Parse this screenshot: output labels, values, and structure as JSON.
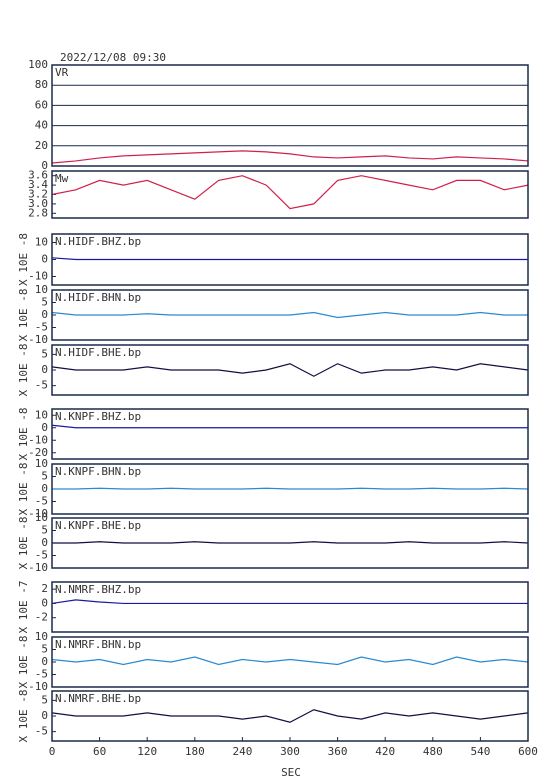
{
  "chart_data": [
    {
      "type": "line",
      "title": "2022/12/08 09:30",
      "name": "VR",
      "x": [
        0,
        30,
        60,
        90,
        120,
        150,
        180,
        210,
        240,
        270,
        300,
        330,
        360,
        390,
        420,
        450,
        480,
        510,
        540,
        570,
        600
      ],
      "values": [
        3,
        5,
        8,
        10,
        11,
        12,
        13,
        14,
        15,
        14,
        12,
        9,
        8,
        9,
        10,
        8,
        7,
        9,
        8,
        7,
        5
      ],
      "color": "#d0204a",
      "xlim": [
        0,
        600
      ],
      "ylim": [
        0,
        100
      ],
      "yticks": [
        0,
        20,
        40,
        60,
        80,
        100
      ],
      "grid": true
    },
    {
      "type": "line",
      "name": "Mw",
      "x": [
        0,
        30,
        60,
        90,
        120,
        150,
        180,
        210,
        240,
        270,
        300,
        330,
        360,
        390,
        420,
        450,
        480,
        510,
        540,
        570,
        600
      ],
      "values": [
        3.2,
        3.3,
        3.5,
        3.4,
        3.5,
        3.3,
        3.1,
        3.5,
        3.6,
        3.4,
        2.9,
        3.0,
        3.5,
        3.6,
        3.5,
        3.4,
        3.3,
        3.5,
        3.5,
        3.3,
        3.4
      ],
      "color": "#d0204a",
      "xlim": [
        0,
        600
      ],
      "ylim": [
        2.7,
        3.7
      ],
      "yticks": [
        2.8,
        {
          "value": 3,
          "label": "3.0"
        },
        3.2,
        3.4,
        3.6
      ]
    },
    {
      "type": "line",
      "name": "N.HIDF.BHZ.bp",
      "ylabel": "X 10E -8",
      "x": [
        0,
        30,
        60,
        90,
        120,
        150,
        180,
        210,
        240,
        270,
        300,
        330,
        360,
        390,
        420,
        450,
        480,
        510,
        540,
        570,
        600
      ],
      "values": [
        1,
        0,
        0,
        0,
        0,
        0,
        0,
        0,
        0,
        0,
        0,
        0,
        0,
        0,
        0,
        0,
        0,
        0,
        0,
        0,
        0
      ],
      "color": "#1a1aa0",
      "xlim": [
        0,
        600
      ],
      "ylim": [
        -15,
        15
      ],
      "yticks": [
        -10,
        0,
        10
      ]
    },
    {
      "type": "line",
      "name": "N.HIDF.BHN.bp",
      "ylabel": "X 10E -8",
      "x": [
        0,
        30,
        60,
        90,
        120,
        150,
        180,
        210,
        240,
        270,
        300,
        330,
        360,
        390,
        420,
        450,
        480,
        510,
        540,
        570,
        600
      ],
      "values": [
        1,
        0,
        0,
        0,
        0.5,
        0,
        0,
        0,
        0,
        0,
        0,
        1,
        -1,
        0,
        1,
        0,
        0,
        0,
        1,
        0,
        0
      ],
      "color": "#2a8ad0",
      "xlim": [
        0,
        600
      ],
      "ylim": [
        -10,
        10
      ],
      "yticks": [
        -10,
        -5,
        0,
        5,
        10
      ]
    },
    {
      "type": "line",
      "name": "N.HIDF.BHE.bp",
      "ylabel": "X 10E -8",
      "x": [
        0,
        30,
        60,
        90,
        120,
        150,
        180,
        210,
        240,
        270,
        300,
        330,
        360,
        390,
        420,
        450,
        480,
        510,
        540,
        570,
        600
      ],
      "values": [
        1,
        0,
        0,
        0,
        1,
        0,
        0,
        0,
        -1,
        0,
        2,
        -2,
        2,
        -1,
        0,
        0,
        1,
        0,
        2,
        1,
        0
      ],
      "color": "#101040",
      "xlim": [
        0,
        600
      ],
      "ylim": [
        -8,
        8
      ],
      "yticks": [
        -5,
        0,
        5
      ]
    },
    {
      "type": "line",
      "name": "N.KNPF.BHZ.bp",
      "ylabel": "X 10E -8",
      "x": [
        0,
        30,
        60,
        90,
        120,
        150,
        180,
        210,
        240,
        270,
        300,
        330,
        360,
        390,
        420,
        450,
        480,
        510,
        540,
        570,
        600
      ],
      "values": [
        2,
        0,
        0,
        0,
        0,
        0,
        0,
        0,
        0,
        0,
        0,
        0,
        0,
        0,
        0,
        0,
        0,
        0,
        0,
        0,
        0
      ],
      "color": "#1a1aa0",
      "xlim": [
        0,
        600
      ],
      "ylim": [
        -25,
        15
      ],
      "yticks": [
        -20,
        -10,
        0,
        10
      ]
    },
    {
      "type": "line",
      "name": "N.KNPF.BHN.bp",
      "ylabel": "X 10E -8",
      "x": [
        0,
        30,
        60,
        90,
        120,
        150,
        180,
        210,
        240,
        270,
        300,
        330,
        360,
        390,
        420,
        450,
        480,
        510,
        540,
        570,
        600
      ],
      "values": [
        0,
        0,
        0.3,
        0,
        0,
        0.3,
        0,
        0,
        0,
        0.3,
        0,
        0,
        0,
        0.3,
        0,
        0,
        0.3,
        0,
        0,
        0.3,
        0
      ],
      "color": "#2a8ad0",
      "xlim": [
        0,
        600
      ],
      "ylim": [
        -10,
        10
      ],
      "yticks": [
        -10,
        -5,
        0,
        5,
        10
      ]
    },
    {
      "type": "line",
      "name": "N.KNPF.BHE.bp",
      "ylabel": "X 10E -8",
      "x": [
        0,
        30,
        60,
        90,
        120,
        150,
        180,
        210,
        240,
        270,
        300,
        330,
        360,
        390,
        420,
        450,
        480,
        510,
        540,
        570,
        600
      ],
      "values": [
        0,
        0,
        0.5,
        0,
        0,
        0,
        0.5,
        0,
        0,
        0,
        0,
        0.5,
        0,
        0,
        0,
        0.5,
        0,
        0,
        0,
        0.5,
        0
      ],
      "color": "#101040",
      "xlim": [
        0,
        600
      ],
      "ylim": [
        -10,
        10
      ],
      "yticks": [
        -10,
        -5,
        0,
        5,
        10
      ]
    },
    {
      "type": "line",
      "name": "N.NMRF.BHZ.bp",
      "ylabel": "X 10E -7",
      "x": [
        0,
        30,
        60,
        90,
        120,
        150,
        180,
        210,
        240,
        270,
        300,
        330,
        360,
        390,
        420,
        450,
        480,
        510,
        540,
        570,
        600
      ],
      "values": [
        0,
        0.5,
        0.2,
        0,
        0,
        0,
        0,
        0,
        0,
        0,
        0,
        0,
        0,
        0,
        0,
        0,
        0,
        0,
        0,
        0,
        0
      ],
      "color": "#1a1aa0",
      "xlim": [
        0,
        600
      ],
      "ylim": [
        -4,
        3
      ],
      "yticks": [
        -2,
        0,
        2
      ]
    },
    {
      "type": "line",
      "name": "N.NMRF.BHN.bp",
      "ylabel": "X 10E -8",
      "x": [
        0,
        30,
        60,
        90,
        120,
        150,
        180,
        210,
        240,
        270,
        300,
        330,
        360,
        390,
        420,
        450,
        480,
        510,
        540,
        570,
        600
      ],
      "values": [
        1,
        0,
        1,
        -1,
        1,
        0,
        2,
        -1,
        1,
        0,
        1,
        0,
        -1,
        2,
        0,
        1,
        -1,
        2,
        0,
        1,
        0
      ],
      "color": "#2a8ad0",
      "xlim": [
        0,
        600
      ],
      "ylim": [
        -10,
        10
      ],
      "yticks": [
        -10,
        -5,
        0,
        5,
        10
      ]
    },
    {
      "type": "line",
      "name": "N.NMRF.BHE.bp",
      "ylabel": "X 10E -8",
      "xlabel": "SEC",
      "x": [
        0,
        30,
        60,
        90,
        120,
        150,
        180,
        210,
        240,
        270,
        300,
        330,
        360,
        390,
        420,
        450,
        480,
        510,
        540,
        570,
        600
      ],
      "values": [
        1,
        0,
        0,
        0,
        1,
        0,
        0,
        0,
        -1,
        0,
        -2,
        2,
        0,
        -1,
        1,
        0,
        1,
        0,
        -1,
        0,
        1
      ],
      "color": "#101040",
      "xlim": [
        0,
        600
      ],
      "ylim": [
        -8,
        8
      ],
      "yticks": [
        -5,
        0,
        5
      ],
      "xticks": [
        0,
        60,
        120,
        180,
        240,
        300,
        360,
        420,
        480,
        540,
        600
      ]
    }
  ]
}
